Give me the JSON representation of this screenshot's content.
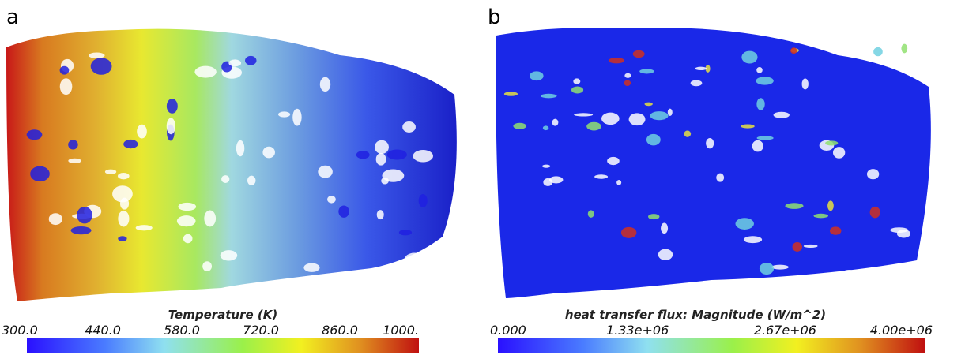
{
  "panels": [
    {
      "label": "a",
      "colorbar": {
        "title": "Temperature (K)",
        "ticks": [
          "300.0",
          "440.0",
          "580.0",
          "720.0",
          "860.0",
          "1000."
        ]
      }
    },
    {
      "label": "b",
      "colorbar": {
        "title": "heat transfer flux: Magnitude (W/m^2)",
        "ticks": [
          "0.000",
          "1.33e+06",
          "2.67e+06",
          "4.00e+06"
        ]
      }
    }
  ]
}
